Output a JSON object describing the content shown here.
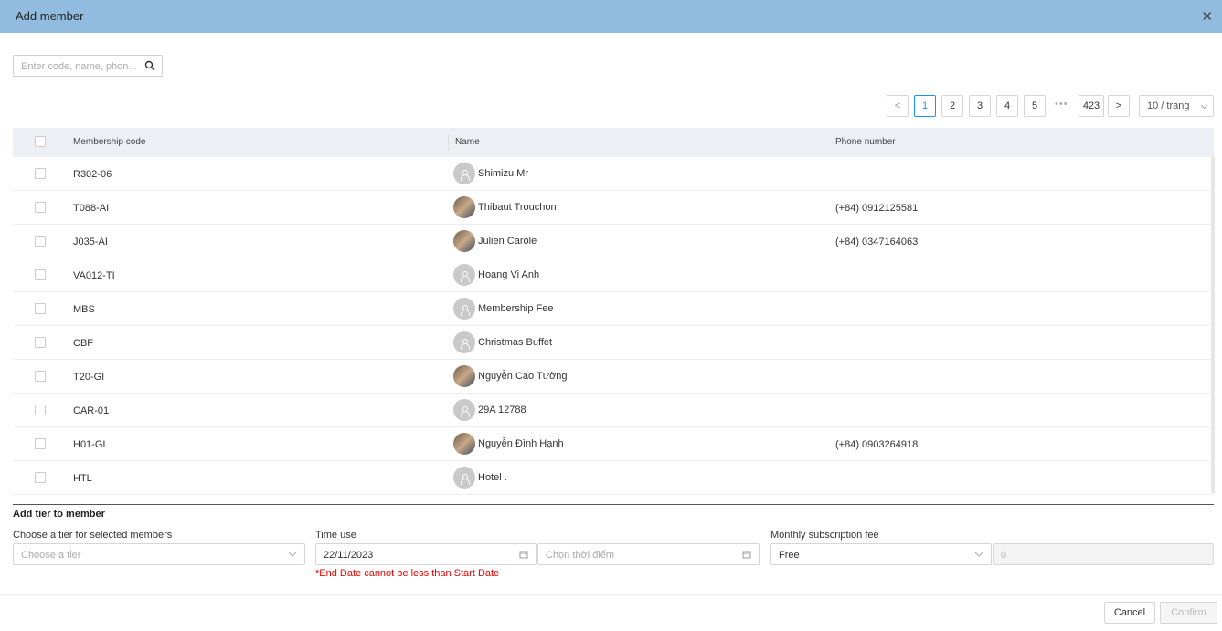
{
  "dialog": {
    "title": "Add member",
    "close_icon": "close-icon"
  },
  "search": {
    "placeholder": "Enter code, name, phon...",
    "icon": "search-icon"
  },
  "pagination": {
    "prev": "<",
    "next": ">",
    "pages": [
      "1",
      "2",
      "3",
      "4",
      "5"
    ],
    "current": "1",
    "ellipsis": "•••",
    "last": "423",
    "page_size": "10 / trang"
  },
  "table": {
    "headers": {
      "code": "Membership code",
      "name": "Name",
      "phone": "Phone number"
    },
    "rows": [
      {
        "code": "R302-06",
        "name": "Shimizu Mr",
        "phone": ""
      },
      {
        "code": "T088-AI",
        "name": "Thibaut Trouchon",
        "phone": "(+84) 0912125581"
      },
      {
        "code": "J035-AI",
        "name": "Julien Carole",
        "phone": "(+84) 0347164063"
      },
      {
        "code": "VA012-TI",
        "name": "Hoang Vi Anh",
        "phone": ""
      },
      {
        "code": "MBS",
        "name": "Membership Fee",
        "phone": ""
      },
      {
        "code": "CBF",
        "name": "Christmas Buffet",
        "phone": ""
      },
      {
        "code": "T20-GI",
        "name": "Nguyễn Cao Tường",
        "phone": ""
      },
      {
        "code": "CAR-01",
        "name": "29A 12788",
        "phone": ""
      },
      {
        "code": "H01-GI",
        "name": "Nguyễn Đình Hạnh",
        "phone": "(+84) 0903264918"
      },
      {
        "code": "HTL",
        "name": "Hotel .",
        "phone": ""
      }
    ]
  },
  "tier": {
    "section_title": "Add tier to member",
    "tier_label": "Choose a tier for selected members",
    "tier_placeholder": "Choose a tier",
    "time_label": "Time use",
    "start_date": "22/11/2023",
    "end_placeholder": "Chọn thời điểm",
    "error": "*End Date cannot be less than Start Date",
    "fee_label": "Monthly subscription fee",
    "fee_option": "Free",
    "fee_amount": "0"
  },
  "footer": {
    "cancel": "Cancel",
    "confirm": "Confirm"
  }
}
